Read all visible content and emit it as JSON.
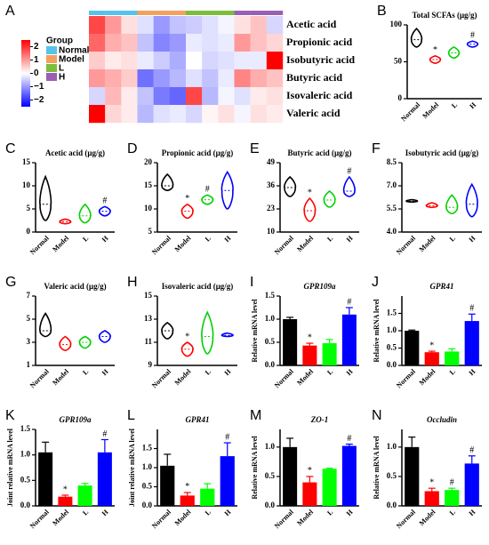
{
  "chart_data": [
    {
      "panel": "A",
      "type": "heatmap",
      "rows": [
        "Acetic acid",
        "Propionic acid",
        "Isobutyric acid",
        "Butyric acid",
        "Isovaleric acid",
        "Valeric acid"
      ],
      "groups_title": "Group",
      "groups": [
        "Normal",
        "Model",
        "L",
        "H"
      ],
      "group_colors": [
        "#56c3ec",
        "#f3a15c",
        "#7cbd3c",
        "#9a5fb4"
      ],
      "zlim": [
        -2.5,
        2.5
      ],
      "low_color": "#0000ff",
      "mid_color": "#ffffff",
      "high_color": "#ff0000",
      "zticks": [
        2,
        1,
        0,
        {
          "value": -1,
          "label": "−1"
        },
        {
          "value": -2,
          "label": "−2"
        }
      ],
      "values": [
        [
          1.8,
          1.0,
          0.3,
          -0.3,
          -1.0,
          -0.6,
          -0.5,
          -0.3,
          -0.1,
          0.3,
          0.6,
          -0.4
        ],
        [
          1.5,
          0.8,
          0.6,
          -0.6,
          -1.2,
          -1.0,
          -0.2,
          -0.3,
          -0.2,
          1.0,
          0.6,
          0.4
        ],
        [
          0.5,
          0.2,
          0.3,
          -0.2,
          -0.5,
          -0.8,
          0.0,
          -0.4,
          -0.3,
          -0.2,
          -0.2,
          2.5
        ],
        [
          1.0,
          0.8,
          0.5,
          -1.4,
          -1.0,
          -0.7,
          -0.3,
          -0.6,
          -0.2,
          1.2,
          0.8,
          0.6
        ],
        [
          -0.4,
          0.7,
          0.2,
          -0.6,
          -1.3,
          -1.5,
          1.8,
          -0.7,
          -0.1,
          -0.3,
          0.2,
          0.3
        ],
        [
          2.5,
          0.4,
          0.2,
          -0.7,
          -0.3,
          -0.2,
          -0.4,
          0.1,
          0.3,
          -0.1,
          0.3,
          0.2
        ]
      ]
    },
    {
      "panel": "B",
      "type": "violin",
      "title": "Total SCFAs (μg/g)",
      "categories": [
        "Normal",
        "Model",
        "L",
        "H"
      ],
      "colors": [
        "#000000",
        "#ff0000",
        "#00d000",
        "#0000ff"
      ],
      "low": [
        70,
        48,
        55,
        70
      ],
      "mid": [
        80,
        53,
        62,
        74
      ],
      "high": [
        95,
        58,
        70,
        78
      ],
      "markers": [
        null,
        "*",
        null,
        "#"
      ],
      "ylim": [
        0,
        100
      ],
      "yticks": [
        0,
        50,
        100
      ]
    },
    {
      "panel": "C",
      "type": "violin",
      "title": "Acetic acid (μg/g)",
      "categories": [
        "Normal",
        "Model",
        "L",
        "H"
      ],
      "colors": [
        "#000000",
        "#ff0000",
        "#00d000",
        "#0000ff"
      ],
      "low": [
        2.5,
        1.8,
        2.0,
        3.5
      ],
      "mid": [
        6,
        2.2,
        3.5,
        4.5
      ],
      "high": [
        12,
        2.8,
        6,
        5.5
      ],
      "markers": [
        null,
        null,
        null,
        "#"
      ],
      "ylim": [
        0,
        15
      ],
      "yticks": [
        0,
        5,
        10,
        15
      ]
    },
    {
      "panel": "D",
      "type": "violin",
      "title": "Propionic acid (μg/g)",
      "categories": [
        "Normal",
        "Model",
        "L",
        "H"
      ],
      "colors": [
        "#000000",
        "#ff0000",
        "#00d000",
        "#0000ff"
      ],
      "low": [
        14,
        8,
        11,
        10
      ],
      "mid": [
        15,
        9.5,
        12,
        14
      ],
      "high": [
        17.5,
        11,
        13,
        18
      ],
      "markers": [
        null,
        "*",
        "#",
        null
      ],
      "ylim": [
        5,
        20
      ],
      "yticks": [
        5,
        10,
        15,
        20
      ]
    },
    {
      "panel": "E",
      "type": "violin",
      "title": "Butyric acid (μg/g)",
      "categories": [
        "Normal",
        "Model",
        "L",
        "H"
      ],
      "colors": [
        "#000000",
        "#ff0000",
        "#00d000",
        "#0000ff"
      ],
      "low": [
        30,
        16,
        24,
        30
      ],
      "mid": [
        35,
        22,
        28,
        33
      ],
      "high": [
        41,
        29,
        33,
        41
      ],
      "markers": [
        null,
        "*",
        null,
        "#"
      ],
      "ylim": [
        10,
        49
      ],
      "yticks": [
        10,
        23,
        36,
        49
      ]
    },
    {
      "panel": "F",
      "type": "violin",
      "title": "Isobutyric acid (μg/g)",
      "categories": [
        "Normal",
        "Model",
        "L",
        "H"
      ],
      "colors": [
        "#000000",
        "#ff0000",
        "#00d000",
        "#0000ff"
      ],
      "low": [
        5.95,
        5.6,
        5.2,
        5.0
      ],
      "mid": [
        6.0,
        5.7,
        5.6,
        5.8
      ],
      "high": [
        6.1,
        5.9,
        6.4,
        7.1
      ],
      "markers": [
        null,
        null,
        null,
        null
      ],
      "ylim": [
        4,
        8.5
      ],
      "yticks": [
        {
          "value": 4,
          "label": "4.0"
        },
        5.5,
        {
          "value": 7,
          "label": "7.0"
        },
        8.5
      ]
    },
    {
      "panel": "G",
      "type": "violin",
      "title": "Valeric acid (μg/g)",
      "categories": [
        "Normal",
        "Model",
        "L",
        "H"
      ],
      "colors": [
        "#000000",
        "#ff0000",
        "#00d000",
        "#0000ff"
      ],
      "low": [
        3.5,
        2.3,
        2.5,
        3.0
      ],
      "mid": [
        4,
        2.8,
        3,
        3.5
      ],
      "high": [
        5.5,
        3.5,
        3.5,
        4
      ],
      "markers": [
        null,
        null,
        null,
        null
      ],
      "ylim": [
        1,
        7
      ],
      "yticks": [
        1,
        3,
        5,
        7
      ]
    },
    {
      "panel": "H",
      "type": "violin",
      "title": "Isovaleric acid (μg/g)",
      "categories": [
        "Normal",
        "Model",
        "L",
        "H"
      ],
      "colors": [
        "#000000",
        "#ff0000",
        "#00d000",
        "#0000ff"
      ],
      "low": [
        11.3,
        9.8,
        10,
        11.5
      ],
      "mid": [
        12,
        10.4,
        11.5,
        11.6
      ],
      "high": [
        12.7,
        11,
        13.6,
        11.8
      ],
      "markers": [
        null,
        "*",
        null,
        null
      ],
      "ylim": [
        9,
        15
      ],
      "yticks": [
        9,
        11,
        13,
        15
      ]
    },
    {
      "panel": "I",
      "type": "bar",
      "title": "GPR109a",
      "ylabel": "Relative mRNA level",
      "categories": [
        "Normal",
        "Model",
        "L",
        "H"
      ],
      "colors": [
        "#000000",
        "#ff0000",
        "#00ff00",
        "#0000ff"
      ],
      "values": [
        1.0,
        0.43,
        0.48,
        1.1
      ],
      "errors": [
        0.04,
        0.05,
        0.08,
        0.15
      ],
      "markers": [
        null,
        "*",
        null,
        "#"
      ],
      "ylim": [
        0,
        1.5
      ],
      "yticks": [
        {
          "value": 0,
          "label": "0.0"
        },
        0.5,
        {
          "value": 1,
          "label": "1.0"
        },
        1.5
      ]
    },
    {
      "panel": "J",
      "type": "bar",
      "title": "GPR41",
      "ylabel": "Relative mRNA level",
      "categories": [
        "Normal",
        "Model",
        "L",
        "H"
      ],
      "colors": [
        "#000000",
        "#ff0000",
        "#00ff00",
        "#0000ff"
      ],
      "values": [
        1.0,
        0.38,
        0.4,
        1.28
      ],
      "errors": [
        0.02,
        0.03,
        0.08,
        0.2
      ],
      "markers": [
        null,
        "*",
        null,
        "#"
      ],
      "ylim": [
        0,
        2
      ],
      "yticks": [
        {
          "value": 0,
          "label": "0.0"
        },
        0.5,
        {
          "value": 1,
          "label": "1.0"
        },
        1.5
      ]
    },
    {
      "panel": "K",
      "type": "bar",
      "title": "GPR109a",
      "ylabel": "Joint relative mRNA level",
      "categories": [
        "Normal",
        "Model",
        "L",
        "H"
      ],
      "colors": [
        "#000000",
        "#ff0000",
        "#00ff00",
        "#0000ff"
      ],
      "values": [
        1.05,
        0.18,
        0.4,
        1.05
      ],
      "errors": [
        0.2,
        0.03,
        0.04,
        0.25
      ],
      "markers": [
        null,
        "*",
        null,
        "#"
      ],
      "ylim": [
        0,
        1.5
      ],
      "yticks": [
        {
          "value": 0,
          "label": "0.0"
        },
        0.5,
        {
          "value": 1,
          "label": "1.0"
        },
        1.5
      ]
    },
    {
      "panel": "L",
      "type": "bar",
      "title": "GPR41",
      "ylabel": "Joint relative mRNA level",
      "categories": [
        "Normal",
        "Model",
        "L",
        "H"
      ],
      "colors": [
        "#000000",
        "#ff0000",
        "#00ff00",
        "#0000ff"
      ],
      "values": [
        1.05,
        0.27,
        0.45,
        1.3
      ],
      "errors": [
        0.3,
        0.08,
        0.13,
        0.35
      ],
      "markers": [
        null,
        "*",
        null,
        "#"
      ],
      "ylim": [
        0,
        2
      ],
      "yticks": [
        {
          "value": 0,
          "label": "0.0"
        },
        0.5,
        {
          "value": 1,
          "label": "1.0"
        },
        1.5
      ]
    },
    {
      "panel": "M",
      "type": "bar",
      "title": "ZO-1",
      "ylabel": "Relative mRNA level",
      "categories": [
        "Normal",
        "Model",
        "L",
        "H"
      ],
      "colors": [
        "#000000",
        "#ff0000",
        "#00ff00",
        "#0000ff"
      ],
      "values": [
        1.0,
        0.4,
        0.63,
        1.02
      ],
      "errors": [
        0.15,
        0.1,
        0.01,
        0.03
      ],
      "markers": [
        null,
        "*",
        null,
        "#"
      ],
      "ylim": [
        0,
        1.3
      ],
      "yticks": [
        {
          "value": 0,
          "label": "0.0"
        },
        0.5,
        {
          "value": 1,
          "label": "1.0"
        }
      ]
    },
    {
      "panel": "N",
      "type": "bar",
      "title": "Occludin",
      "ylabel": "Relative mRNA level",
      "categories": [
        "Normal",
        "Model",
        "L",
        "H"
      ],
      "colors": [
        "#000000",
        "#ff0000",
        "#00ff00",
        "#0000ff"
      ],
      "values": [
        1.0,
        0.25,
        0.27,
        0.72
      ],
      "errors": [
        0.17,
        0.05,
        0.03,
        0.13
      ],
      "markers": [
        null,
        "*",
        "#",
        "#"
      ],
      "ylim": [
        0,
        1.3
      ],
      "yticks": [
        {
          "value": 0,
          "label": "0.0"
        },
        0.5,
        {
          "value": 1,
          "label": "1.0"
        }
      ]
    }
  ]
}
